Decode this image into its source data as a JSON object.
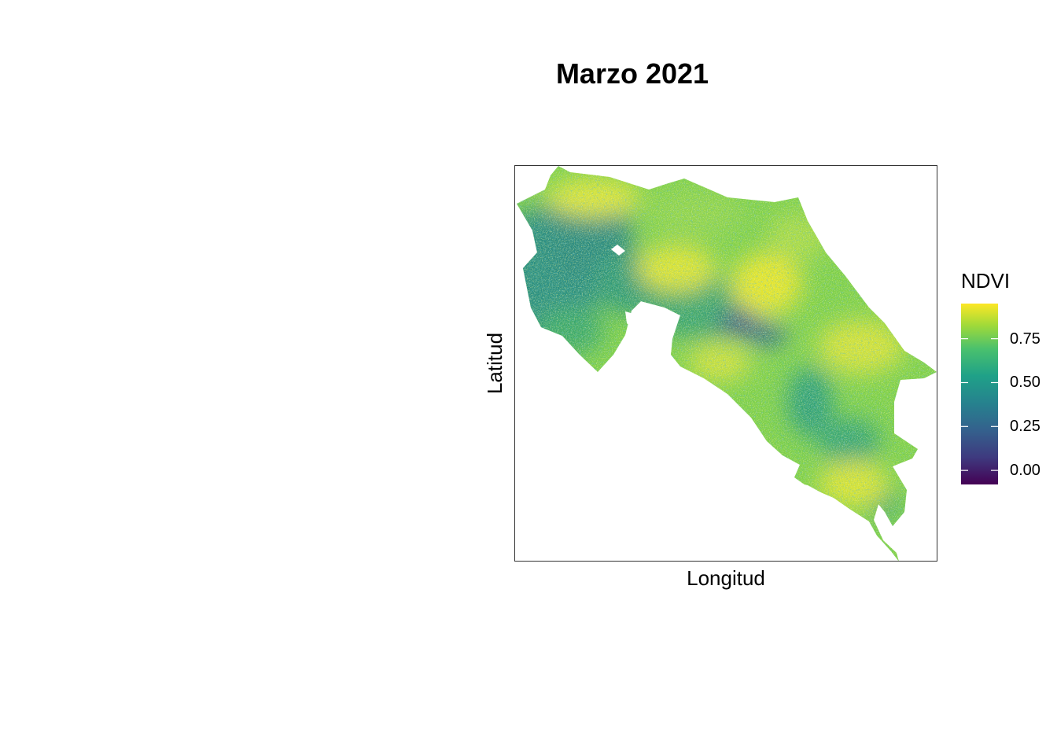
{
  "title": "Marzo 2021",
  "map": {
    "xlabel": "Longitud",
    "ylabel": "Latitud",
    "type": "raster",
    "variable": "NDVI"
  },
  "legend": {
    "title": "NDVI",
    "palette": [
      "#440154",
      "#3b528b",
      "#21908c",
      "#5dc863",
      "#fde725"
    ],
    "range": [
      -0.08,
      0.95
    ],
    "ticks": [
      {
        "value": 0.0,
        "label": "0.00"
      },
      {
        "value": 0.25,
        "label": "0.25"
      },
      {
        "value": 0.5,
        "label": "0.50"
      },
      {
        "value": 0.75,
        "label": "0.75"
      }
    ]
  }
}
